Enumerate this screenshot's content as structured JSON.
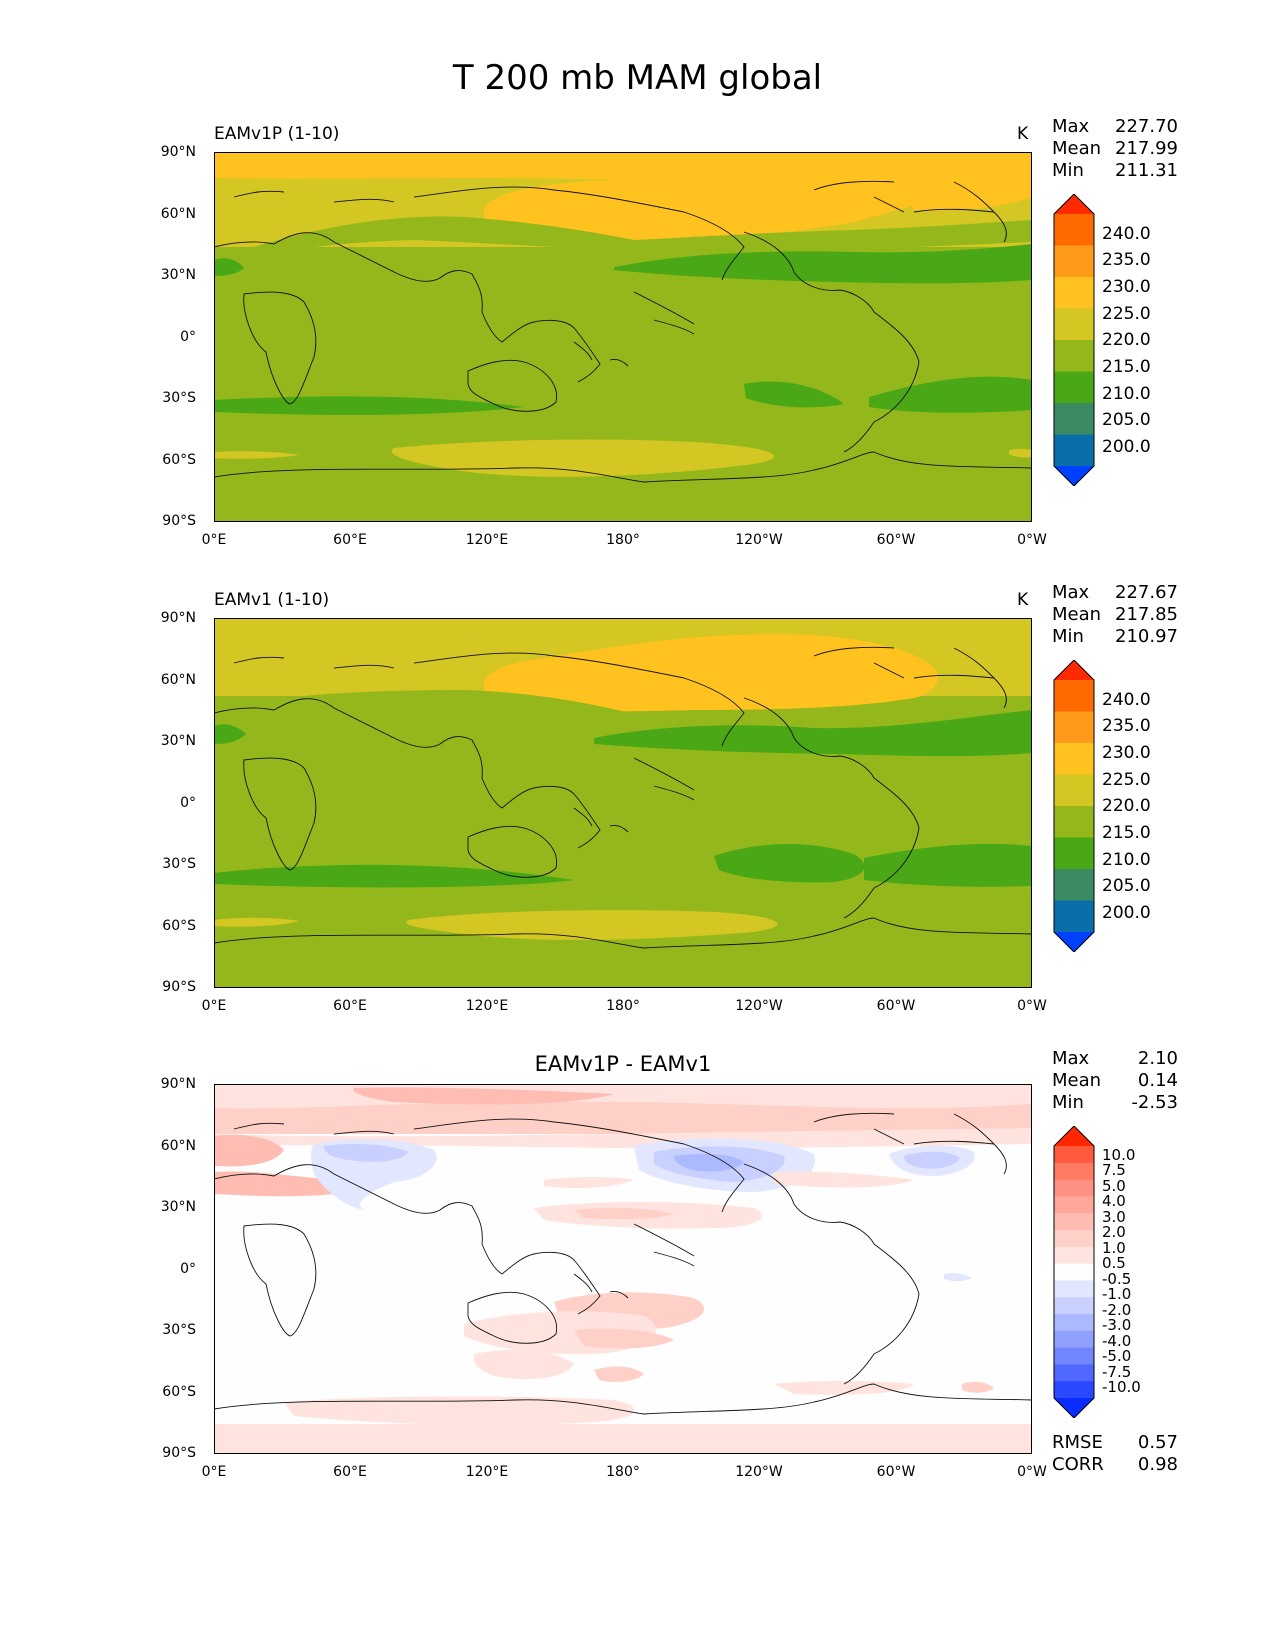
{
  "figure": {
    "title": "T 200 mb MAM global"
  },
  "axes": {
    "yticks": [
      "90°N",
      "60°N",
      "30°N",
      "0°",
      "30°S",
      "60°S",
      "90°S"
    ],
    "xticks": [
      "0°E",
      "60°E",
      "120°E",
      "180°",
      "120°W",
      "60°W",
      "0°W"
    ]
  },
  "panels": [
    {
      "label": "EAMv1P (1-10)",
      "units": "K",
      "stats": {
        "max_label": "Max",
        "max": "227.70",
        "mean_label": "Mean",
        "mean": "217.99",
        "min_label": "Min",
        "min": "211.31"
      }
    },
    {
      "label": "EAMv1 (1-10)",
      "units": "K",
      "stats": {
        "max_label": "Max",
        "max": "227.67",
        "mean_label": "Mean",
        "mean": "217.85",
        "min_label": "Min",
        "min": "210.97"
      }
    },
    {
      "title": "EAMv1P - EAMv1",
      "stats": {
        "max_label": "Max",
        "max": "2.10",
        "mean_label": "Mean",
        "mean": "0.14",
        "min_label": "Min",
        "min": "-2.53"
      },
      "metrics": {
        "rmse_label": "RMSE",
        "rmse": "0.57",
        "corr_label": "CORR",
        "corr": "0.98"
      }
    }
  ],
  "colorbars": {
    "abs": {
      "ticks": [
        "240.0",
        "235.0",
        "230.0",
        "225.0",
        "220.0",
        "215.0",
        "210.0",
        "205.0",
        "200.0"
      ],
      "colors": [
        "#ff2a00",
        "#ff6a00",
        "#ff9a1a",
        "#ffc21e",
        "#d4c623",
        "#94b81c",
        "#4aa716",
        "#3a8a62",
        "#0a6fa8",
        "#0040ff"
      ]
    },
    "diff": {
      "ticks": [
        "10.0",
        "7.5",
        "5.0",
        "4.0",
        "3.0",
        "2.0",
        "1.0",
        "0.5",
        "-0.5",
        "-1.0",
        "-2.0",
        "-3.0",
        "-4.0",
        "-5.0",
        "-7.5",
        "-10.0"
      ],
      "colors": [
        "#ff2600",
        "#ff5a3c",
        "#ff7a62",
        "#ff9182",
        "#ffa79a",
        "#ffbcb2",
        "#ffd0c8",
        "#ffe3de",
        "#fefefe",
        "#e2e6ff",
        "#c8d0ff",
        "#adb9ff",
        "#90a0ff",
        "#7286ff",
        "#5068ff",
        "#2a48ff",
        "#0a2cff"
      ]
    }
  },
  "chart_data": [
    {
      "type": "heatmap",
      "title": "EAMv1P (1-10)",
      "units": "K",
      "levels": [
        200,
        205,
        210,
        215,
        220,
        225,
        230,
        235,
        240
      ],
      "xlim": [
        0,
        360
      ],
      "ylim": [
        -90,
        90
      ],
      "summary": {
        "max": 227.7,
        "mean": 217.99,
        "min": 211.31
      }
    },
    {
      "type": "heatmap",
      "title": "EAMv1 (1-10)",
      "units": "K",
      "levels": [
        200,
        205,
        210,
        215,
        220,
        225,
        230,
        235,
        240
      ],
      "xlim": [
        0,
        360
      ],
      "ylim": [
        -90,
        90
      ],
      "summary": {
        "max": 227.67,
        "mean": 217.85,
        "min": 210.97
      }
    },
    {
      "type": "heatmap",
      "title": "EAMv1P - EAMv1",
      "levels": [
        -10,
        -7.5,
        -5,
        -4,
        -3,
        -2,
        -1,
        -0.5,
        0.5,
        1,
        2,
        3,
        4,
        5,
        7.5,
        10
      ],
      "xlim": [
        0,
        360
      ],
      "ylim": [
        -90,
        90
      ],
      "summary": {
        "max": 2.1,
        "mean": 0.14,
        "min": -2.53,
        "rmse": 0.57,
        "corr": 0.98
      }
    }
  ]
}
